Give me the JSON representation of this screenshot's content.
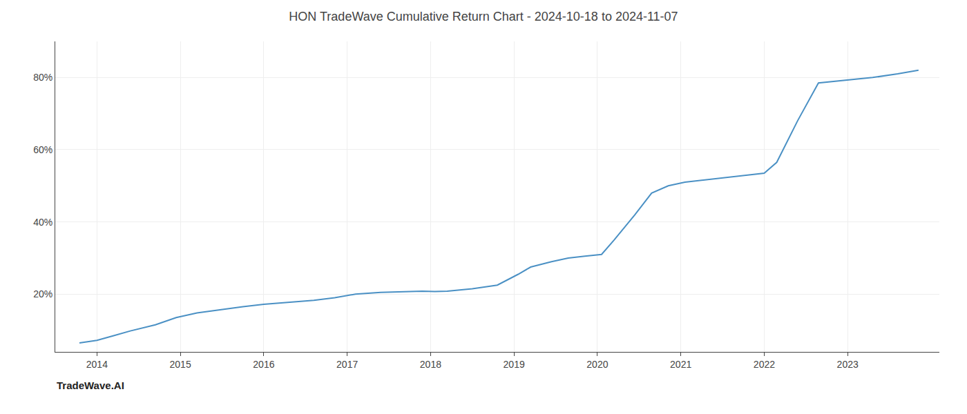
{
  "chart_data": {
    "type": "line",
    "title": "HON TradeWave Cumulative Return Chart - 2024-10-18 to 2024-11-07",
    "annotations": [
      "TradeWave.AI"
    ],
    "x": [
      2013.79,
      2014.0,
      2014.2,
      2014.4,
      2014.7,
      2014.95,
      2015.2,
      2015.5,
      2015.75,
      2016.0,
      2016.3,
      2016.6,
      2016.85,
      2017.1,
      2017.4,
      2017.7,
      2017.9,
      2018.05,
      2018.2,
      2018.5,
      2018.8,
      2019.05,
      2019.2,
      2019.45,
      2019.65,
      2019.85,
      2020.05,
      2020.2,
      2020.45,
      2020.65,
      2020.85,
      2021.05,
      2021.25,
      2021.45,
      2021.65,
      2021.85,
      2022.0,
      2022.15,
      2022.4,
      2022.65,
      2022.85,
      2023.05,
      2023.3,
      2023.6,
      2023.85
    ],
    "values": [
      6.5,
      7.2,
      8.5,
      9.8,
      11.5,
      13.5,
      14.8,
      15.8,
      16.5,
      17.2,
      17.8,
      18.3,
      19.0,
      20.0,
      20.5,
      20.7,
      20.8,
      20.7,
      20.8,
      21.5,
      22.5,
      25.5,
      27.5,
      29.0,
      30.0,
      30.5,
      31.0,
      35.0,
      42.0,
      48.0,
      50.0,
      51.0,
      51.5,
      52.0,
      52.5,
      53.0,
      53.5,
      56.5,
      68.0,
      78.5,
      79.0,
      79.5,
      80.0,
      81.0,
      82.0
    ],
    "color": "#4a90c4",
    "xlim": [
      2013.5,
      2024.1
    ],
    "ylim": [
      4,
      90
    ],
    "xticks": [
      2014,
      2015,
      2016,
      2017,
      2018,
      2019,
      2020,
      2021,
      2022,
      2023
    ],
    "yticks": [
      {
        "value": 20,
        "label": "20%"
      },
      {
        "value": 40,
        "label": "40%"
      },
      {
        "value": 60,
        "label": "60%"
      },
      {
        "value": 80,
        "label": "80%"
      }
    ],
    "grid": true
  }
}
